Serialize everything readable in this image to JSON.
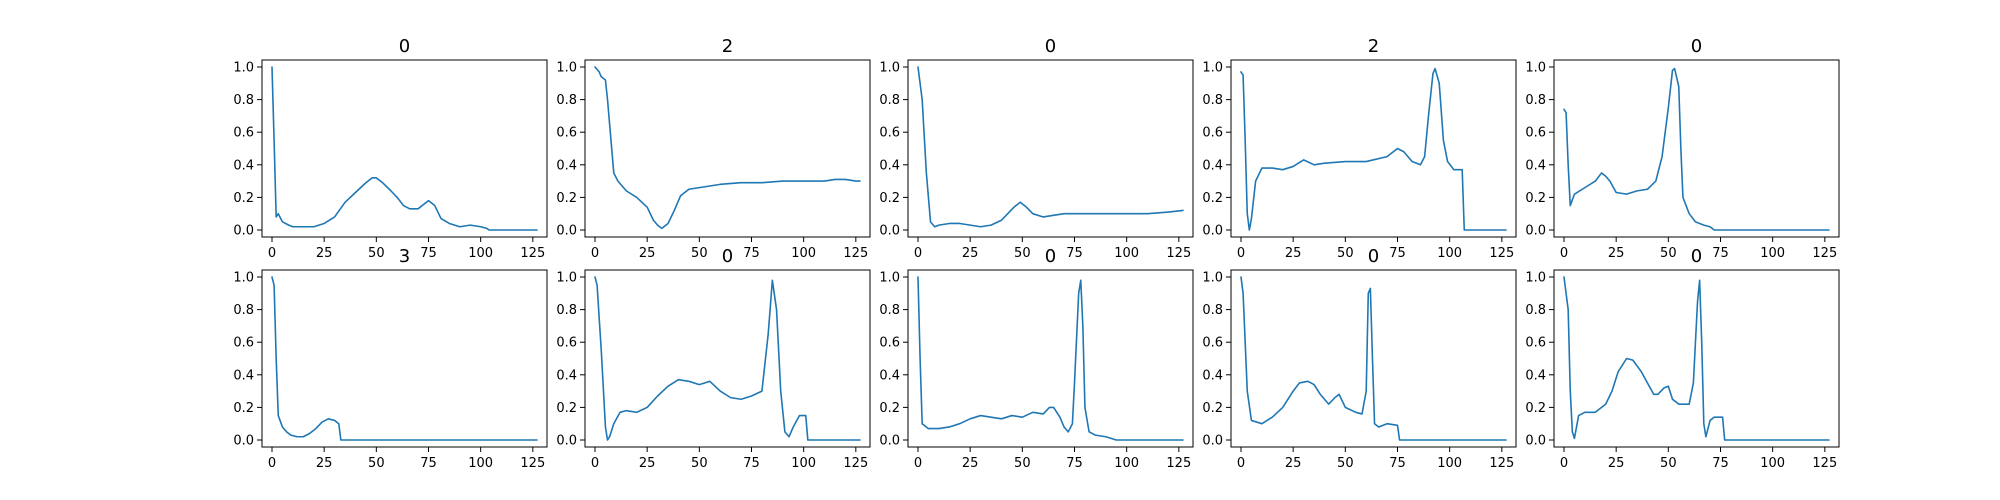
{
  "figure": {
    "line_color": "#1f77b4",
    "frame_color": "#000000"
  },
  "chart_data": [
    {
      "type": "line",
      "title": "0",
      "xlim": [
        0,
        127
      ],
      "ylim": [
        0,
        1.0
      ],
      "xticks": [
        0,
        25,
        50,
        75,
        100,
        125
      ],
      "yticks": [
        0.0,
        0.2,
        0.4,
        0.6,
        0.8,
        1.0
      ],
      "points": [
        [
          0,
          1.0
        ],
        [
          1,
          0.55
        ],
        [
          2,
          0.08
        ],
        [
          3,
          0.1
        ],
        [
          5,
          0.05
        ],
        [
          8,
          0.03
        ],
        [
          10,
          0.02
        ],
        [
          15,
          0.02
        ],
        [
          20,
          0.02
        ],
        [
          25,
          0.04
        ],
        [
          30,
          0.08
        ],
        [
          35,
          0.17
        ],
        [
          40,
          0.23
        ],
        [
          45,
          0.29
        ],
        [
          48,
          0.32
        ],
        [
          50,
          0.32
        ],
        [
          53,
          0.29
        ],
        [
          57,
          0.24
        ],
        [
          60,
          0.2
        ],
        [
          63,
          0.15
        ],
        [
          66,
          0.13
        ],
        [
          70,
          0.13
        ],
        [
          73,
          0.16
        ],
        [
          75,
          0.18
        ],
        [
          78,
          0.15
        ],
        [
          81,
          0.07
        ],
        [
          85,
          0.04
        ],
        [
          90,
          0.02
        ],
        [
          95,
          0.03
        ],
        [
          100,
          0.02
        ],
        [
          103,
          0.01
        ],
        [
          104,
          0.0
        ],
        [
          127,
          0.0
        ]
      ]
    },
    {
      "type": "line",
      "title": "2",
      "xlim": [
        0,
        127
      ],
      "ylim": [
        0,
        1.0
      ],
      "xticks": [
        0,
        25,
        50,
        75,
        100,
        125
      ],
      "yticks": [
        0.0,
        0.2,
        0.4,
        0.6,
        0.8,
        1.0
      ],
      "points": [
        [
          0,
          1.0
        ],
        [
          2,
          0.97
        ],
        [
          3,
          0.94
        ],
        [
          5,
          0.92
        ],
        [
          6,
          0.8
        ],
        [
          8,
          0.5
        ],
        [
          9,
          0.35
        ],
        [
          11,
          0.3
        ],
        [
          15,
          0.24
        ],
        [
          20,
          0.2
        ],
        [
          25,
          0.14
        ],
        [
          28,
          0.06
        ],
        [
          30,
          0.03
        ],
        [
          32,
          0.01
        ],
        [
          35,
          0.04
        ],
        [
          38,
          0.12
        ],
        [
          41,
          0.21
        ],
        [
          45,
          0.25
        ],
        [
          50,
          0.26
        ],
        [
          55,
          0.27
        ],
        [
          60,
          0.28
        ],
        [
          70,
          0.29
        ],
        [
          80,
          0.29
        ],
        [
          90,
          0.3
        ],
        [
          100,
          0.3
        ],
        [
          110,
          0.3
        ],
        [
          115,
          0.31
        ],
        [
          120,
          0.31
        ],
        [
          125,
          0.3
        ],
        [
          127,
          0.3
        ]
      ]
    },
    {
      "type": "line",
      "title": "0",
      "xlim": [
        0,
        127
      ],
      "ylim": [
        0,
        1.0
      ],
      "xticks": [
        0,
        25,
        50,
        75,
        100,
        125
      ],
      "yticks": [
        0.0,
        0.2,
        0.4,
        0.6,
        0.8,
        1.0
      ],
      "points": [
        [
          0,
          1.0
        ],
        [
          2,
          0.8
        ],
        [
          4,
          0.35
        ],
        [
          6,
          0.05
        ],
        [
          8,
          0.02
        ],
        [
          10,
          0.03
        ],
        [
          15,
          0.04
        ],
        [
          20,
          0.04
        ],
        [
          25,
          0.03
        ],
        [
          30,
          0.02
        ],
        [
          35,
          0.03
        ],
        [
          40,
          0.06
        ],
        [
          43,
          0.1
        ],
        [
          46,
          0.14
        ],
        [
          49,
          0.17
        ],
        [
          52,
          0.14
        ],
        [
          55,
          0.1
        ],
        [
          60,
          0.08
        ],
        [
          65,
          0.09
        ],
        [
          70,
          0.1
        ],
        [
          80,
          0.1
        ],
        [
          90,
          0.1
        ],
        [
          100,
          0.1
        ],
        [
          110,
          0.1
        ],
        [
          120,
          0.11
        ],
        [
          127,
          0.12
        ]
      ]
    },
    {
      "type": "line",
      "title": "2",
      "xlim": [
        0,
        127
      ],
      "ylim": [
        0,
        1.0
      ],
      "xticks": [
        0,
        25,
        50,
        75,
        100,
        125
      ],
      "yticks": [
        0.0,
        0.2,
        0.4,
        0.6,
        0.8,
        1.0
      ],
      "points": [
        [
          0,
          0.97
        ],
        [
          1,
          0.95
        ],
        [
          2,
          0.55
        ],
        [
          3,
          0.1
        ],
        [
          4,
          0.0
        ],
        [
          5,
          0.07
        ],
        [
          7,
          0.3
        ],
        [
          10,
          0.38
        ],
        [
          15,
          0.38
        ],
        [
          20,
          0.37
        ],
        [
          25,
          0.39
        ],
        [
          30,
          0.43
        ],
        [
          35,
          0.4
        ],
        [
          40,
          0.41
        ],
        [
          50,
          0.42
        ],
        [
          60,
          0.42
        ],
        [
          70,
          0.45
        ],
        [
          75,
          0.5
        ],
        [
          78,
          0.48
        ],
        [
          82,
          0.42
        ],
        [
          86,
          0.4
        ],
        [
          88,
          0.45
        ],
        [
          90,
          0.72
        ],
        [
          92,
          0.96
        ],
        [
          93,
          0.99
        ],
        [
          95,
          0.9
        ],
        [
          97,
          0.55
        ],
        [
          99,
          0.42
        ],
        [
          102,
          0.37
        ],
        [
          106,
          0.37
        ],
        [
          107,
          0.0
        ],
        [
          127,
          0.0
        ]
      ]
    },
    {
      "type": "line",
      "title": "0",
      "xlim": [
        0,
        127
      ],
      "ylim": [
        0,
        1.0
      ],
      "xticks": [
        0,
        25,
        50,
        75,
        100,
        125
      ],
      "yticks": [
        0.0,
        0.2,
        0.4,
        0.6,
        0.8,
        1.0
      ],
      "points": [
        [
          0,
          0.74
        ],
        [
          1,
          0.72
        ],
        [
          2,
          0.4
        ],
        [
          3,
          0.15
        ],
        [
          5,
          0.22
        ],
        [
          10,
          0.26
        ],
        [
          15,
          0.3
        ],
        [
          18,
          0.35
        ],
        [
          20,
          0.33
        ],
        [
          22,
          0.3
        ],
        [
          25,
          0.23
        ],
        [
          30,
          0.22
        ],
        [
          35,
          0.24
        ],
        [
          40,
          0.25
        ],
        [
          44,
          0.3
        ],
        [
          47,
          0.45
        ],
        [
          50,
          0.75
        ],
        [
          52,
          0.98
        ],
        [
          53,
          0.99
        ],
        [
          55,
          0.88
        ],
        [
          56,
          0.5
        ],
        [
          57,
          0.2
        ],
        [
          60,
          0.1
        ],
        [
          63,
          0.05
        ],
        [
          67,
          0.03
        ],
        [
          70,
          0.02
        ],
        [
          72,
          0.0
        ],
        [
          127,
          0.0
        ]
      ]
    },
    {
      "type": "line",
      "title": "3",
      "xlim": [
        0,
        127
      ],
      "ylim": [
        0,
        1.0
      ],
      "xticks": [
        0,
        25,
        50,
        75,
        100,
        125
      ],
      "yticks": [
        0.0,
        0.2,
        0.4,
        0.6,
        0.8,
        1.0
      ],
      "points": [
        [
          0,
          1.0
        ],
        [
          1,
          0.95
        ],
        [
          2,
          0.5
        ],
        [
          3,
          0.15
        ],
        [
          5,
          0.08
        ],
        [
          7,
          0.05
        ],
        [
          9,
          0.03
        ],
        [
          12,
          0.02
        ],
        [
          15,
          0.02
        ],
        [
          18,
          0.04
        ],
        [
          21,
          0.07
        ],
        [
          24,
          0.11
        ],
        [
          27,
          0.13
        ],
        [
          30,
          0.12
        ],
        [
          32,
          0.1
        ],
        [
          33,
          0.0
        ],
        [
          127,
          0.0
        ]
      ]
    },
    {
      "type": "line",
      "title": "0",
      "xlim": [
        0,
        127
      ],
      "ylim": [
        0,
        1.0
      ],
      "xticks": [
        0,
        25,
        50,
        75,
        100,
        125
      ],
      "yticks": [
        0.0,
        0.2,
        0.4,
        0.6,
        0.8,
        1.0
      ],
      "points": [
        [
          0,
          1.0
        ],
        [
          1,
          0.95
        ],
        [
          3,
          0.55
        ],
        [
          5,
          0.08
        ],
        [
          6,
          0.0
        ],
        [
          7,
          0.02
        ],
        [
          9,
          0.1
        ],
        [
          12,
          0.17
        ],
        [
          15,
          0.18
        ],
        [
          20,
          0.17
        ],
        [
          25,
          0.2
        ],
        [
          30,
          0.27
        ],
        [
          35,
          0.33
        ],
        [
          40,
          0.37
        ],
        [
          45,
          0.36
        ],
        [
          50,
          0.34
        ],
        [
          55,
          0.36
        ],
        [
          60,
          0.3
        ],
        [
          65,
          0.26
        ],
        [
          70,
          0.25
        ],
        [
          75,
          0.27
        ],
        [
          80,
          0.3
        ],
        [
          83,
          0.65
        ],
        [
          85,
          0.98
        ],
        [
          87,
          0.8
        ],
        [
          89,
          0.3
        ],
        [
          91,
          0.05
        ],
        [
          93,
          0.02
        ],
        [
          95,
          0.08
        ],
        [
          98,
          0.15
        ],
        [
          101,
          0.15
        ],
        [
          102,
          0.0
        ],
        [
          127,
          0.0
        ]
      ]
    },
    {
      "type": "line",
      "title": "0",
      "xlim": [
        0,
        127
      ],
      "ylim": [
        0,
        1.0
      ],
      "xticks": [
        0,
        25,
        50,
        75,
        100,
        125
      ],
      "yticks": [
        0.0,
        0.2,
        0.4,
        0.6,
        0.8,
        1.0
      ],
      "points": [
        [
          0,
          1.0
        ],
        [
          1,
          0.5
        ],
        [
          2,
          0.1
        ],
        [
          5,
          0.07
        ],
        [
          10,
          0.07
        ],
        [
          15,
          0.08
        ],
        [
          20,
          0.1
        ],
        [
          25,
          0.13
        ],
        [
          30,
          0.15
        ],
        [
          35,
          0.14
        ],
        [
          40,
          0.13
        ],
        [
          45,
          0.15
        ],
        [
          50,
          0.14
        ],
        [
          55,
          0.17
        ],
        [
          60,
          0.16
        ],
        [
          63,
          0.2
        ],
        [
          65,
          0.2
        ],
        [
          68,
          0.14
        ],
        [
          70,
          0.08
        ],
        [
          72,
          0.05
        ],
        [
          74,
          0.1
        ],
        [
          75,
          0.35
        ],
        [
          77,
          0.9
        ],
        [
          78,
          0.98
        ],
        [
          79,
          0.7
        ],
        [
          80,
          0.2
        ],
        [
          82,
          0.05
        ],
        [
          85,
          0.03
        ],
        [
          90,
          0.02
        ],
        [
          95,
          0.0
        ],
        [
          127,
          0.0
        ]
      ]
    },
    {
      "type": "line",
      "title": "0",
      "xlim": [
        0,
        127
      ],
      "ylim": [
        0,
        1.0
      ],
      "xticks": [
        0,
        25,
        50,
        75,
        100,
        125
      ],
      "yticks": [
        0.0,
        0.2,
        0.4,
        0.6,
        0.8,
        1.0
      ],
      "points": [
        [
          0,
          1.0
        ],
        [
          1,
          0.9
        ],
        [
          3,
          0.3
        ],
        [
          5,
          0.12
        ],
        [
          10,
          0.1
        ],
        [
          15,
          0.14
        ],
        [
          20,
          0.2
        ],
        [
          25,
          0.3
        ],
        [
          28,
          0.35
        ],
        [
          32,
          0.36
        ],
        [
          35,
          0.34
        ],
        [
          38,
          0.28
        ],
        [
          42,
          0.22
        ],
        [
          45,
          0.26
        ],
        [
          47,
          0.28
        ],
        [
          50,
          0.2
        ],
        [
          55,
          0.17
        ],
        [
          58,
          0.16
        ],
        [
          60,
          0.3
        ],
        [
          61,
          0.9
        ],
        [
          62,
          0.93
        ],
        [
          63,
          0.5
        ],
        [
          64,
          0.1
        ],
        [
          66,
          0.08
        ],
        [
          70,
          0.1
        ],
        [
          75,
          0.09
        ],
        [
          76,
          0.0
        ],
        [
          127,
          0.0
        ]
      ]
    },
    {
      "type": "line",
      "title": "0",
      "xlim": [
        0,
        127
      ],
      "ylim": [
        0,
        1.0
      ],
      "xticks": [
        0,
        25,
        50,
        75,
        100,
        125
      ],
      "yticks": [
        0.0,
        0.2,
        0.4,
        0.6,
        0.8,
        1.0
      ],
      "points": [
        [
          0,
          1.0
        ],
        [
          2,
          0.8
        ],
        [
          3,
          0.3
        ],
        [
          4,
          0.05
        ],
        [
          5,
          0.01
        ],
        [
          7,
          0.15
        ],
        [
          10,
          0.17
        ],
        [
          15,
          0.17
        ],
        [
          20,
          0.22
        ],
        [
          23,
          0.3
        ],
        [
          26,
          0.42
        ],
        [
          30,
          0.5
        ],
        [
          33,
          0.49
        ],
        [
          37,
          0.42
        ],
        [
          40,
          0.35
        ],
        [
          43,
          0.28
        ],
        [
          45,
          0.28
        ],
        [
          48,
          0.32
        ],
        [
          50,
          0.33
        ],
        [
          52,
          0.25
        ],
        [
          55,
          0.22
        ],
        [
          60,
          0.22
        ],
        [
          62,
          0.35
        ],
        [
          64,
          0.85
        ],
        [
          65,
          0.98
        ],
        [
          66,
          0.6
        ],
        [
          67,
          0.1
        ],
        [
          68,
          0.02
        ],
        [
          70,
          0.12
        ],
        [
          72,
          0.14
        ],
        [
          76,
          0.14
        ],
        [
          77,
          0.0
        ],
        [
          127,
          0.0
        ]
      ]
    }
  ]
}
